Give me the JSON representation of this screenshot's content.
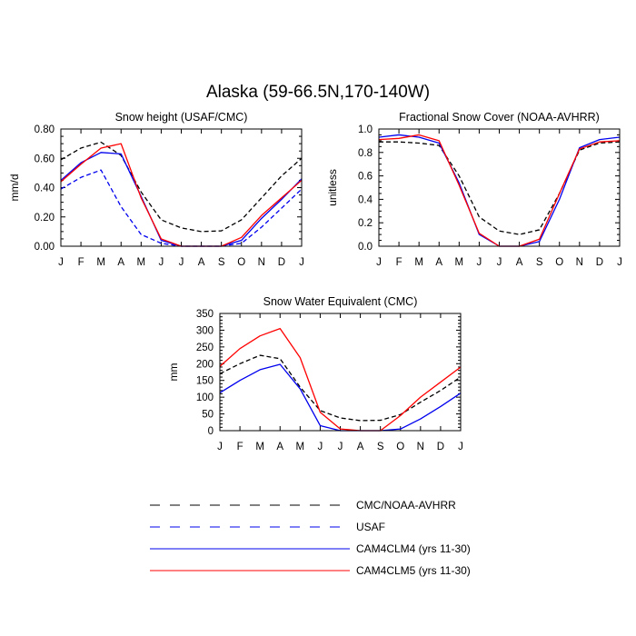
{
  "figure": {
    "title": "Alaska (59-66.5N,170-140W)"
  },
  "chart_data": [
    {
      "type": "line",
      "title": "Snow height (USAF/CMC)",
      "xlabel": "",
      "ylabel": "mm/d",
      "x": [
        "J",
        "F",
        "M",
        "A",
        "M",
        "J",
        "J",
        "A",
        "S",
        "O",
        "N",
        "D",
        "J"
      ],
      "ylim": [
        0,
        0.8
      ],
      "yticks": [
        "0.00",
        "0.20",
        "0.40",
        "0.60",
        "0.80"
      ],
      "series": [
        {
          "name": "CMC/NOAA-AVHRR",
          "color": "#000000",
          "dash": "dash",
          "values": [
            0.59,
            0.67,
            0.71,
            0.62,
            0.37,
            0.18,
            0.125,
            0.1,
            0.105,
            0.18,
            0.33,
            0.48,
            0.6
          ]
        },
        {
          "name": "USAF",
          "color": "#0000ee",
          "dash": "dash",
          "values": [
            0.39,
            0.47,
            0.52,
            0.27,
            0.08,
            0.02,
            0.0,
            0.0,
            0.0,
            0.02,
            0.13,
            0.26,
            0.39
          ]
        },
        {
          "name": "CAM4CLM4 (yrs 11-30)",
          "color": "#0000ee",
          "dash": "solid",
          "values": [
            0.45,
            0.57,
            0.64,
            0.63,
            0.34,
            0.04,
            0.0,
            0.0,
            0.0,
            0.04,
            0.19,
            0.32,
            0.46
          ]
        },
        {
          "name": "CAM4CLM5 (yrs 11-30)",
          "color": "#ff0000",
          "dash": "solid",
          "values": [
            0.44,
            0.56,
            0.67,
            0.7,
            0.33,
            0.05,
            0.0,
            0.0,
            0.0,
            0.06,
            0.21,
            0.33,
            0.45
          ]
        }
      ]
    },
    {
      "type": "line",
      "title": "Fractional Snow Cover (NOAA-AVHRR)",
      "xlabel": "",
      "ylabel": "unitless",
      "x": [
        "J",
        "F",
        "M",
        "A",
        "M",
        "J",
        "J",
        "A",
        "S",
        "O",
        "N",
        "D",
        "J"
      ],
      "ylim": [
        0,
        1.0
      ],
      "yticks": [
        "0.0",
        "0.2",
        "0.4",
        "0.6",
        "0.8",
        "1.0"
      ],
      "series": [
        {
          "name": "CMC/NOAA-AVHRR",
          "color": "#000000",
          "dash": "dash",
          "values": [
            0.89,
            0.89,
            0.88,
            0.86,
            0.6,
            0.25,
            0.13,
            0.1,
            0.14,
            0.45,
            0.82,
            0.88,
            0.89
          ]
        },
        {
          "name": "CAM4CLM4 (yrs 11-30)",
          "color": "#0000ee",
          "dash": "solid",
          "values": [
            0.93,
            0.95,
            0.93,
            0.88,
            0.54,
            0.1,
            0.0,
            0.0,
            0.04,
            0.4,
            0.84,
            0.91,
            0.93
          ]
        },
        {
          "name": "CAM4CLM5 (yrs 11-30)",
          "color": "#ff0000",
          "dash": "solid",
          "values": [
            0.91,
            0.92,
            0.95,
            0.9,
            0.52,
            0.11,
            0.0,
            0.0,
            0.06,
            0.45,
            0.83,
            0.89,
            0.9
          ]
        }
      ]
    },
    {
      "type": "line",
      "title": "Snow Water Equivalent (CMC)",
      "xlabel": "",
      "ylabel": "mm",
      "x": [
        "J",
        "F",
        "M",
        "A",
        "M",
        "J",
        "J",
        "A",
        "S",
        "O",
        "N",
        "D",
        "J"
      ],
      "ylim": [
        0,
        350
      ],
      "yticks": [
        "0",
        "50",
        "100",
        "150",
        "200",
        "250",
        "300",
        "350"
      ],
      "series": [
        {
          "name": "CMC/NOAA-AVHRR",
          "color": "#000000",
          "dash": "dash",
          "values": [
            170,
            200,
            225,
            215,
            130,
            60,
            38,
            30,
            31,
            48,
            85,
            120,
            160
          ]
        },
        {
          "name": "CAM4CLM4 (yrs 11-30)",
          "color": "#0000ee",
          "dash": "solid",
          "values": [
            113,
            150,
            182,
            198,
            125,
            15,
            0,
            0,
            0,
            5,
            35,
            72,
            112
          ]
        },
        {
          "name": "CAM4CLM5 (yrs 11-30)",
          "color": "#ff0000",
          "dash": "solid",
          "values": [
            192,
            245,
            283,
            305,
            218,
            55,
            5,
            0,
            0,
            45,
            100,
            145,
            190
          ]
        }
      ]
    }
  ],
  "legend": {
    "items": [
      {
        "label": "CMC/NOAA-AVHRR",
        "color": "#000000",
        "dash": "dash"
      },
      {
        "label": "USAF",
        "color": "#0000ee",
        "dash": "dash"
      },
      {
        "label": "CAM4CLM4 (yrs 11-30)",
        "color": "#0000ee",
        "dash": "solid"
      },
      {
        "label": "CAM4CLM5 (yrs 11-30)",
        "color": "#ff0000",
        "dash": "solid"
      }
    ]
  }
}
